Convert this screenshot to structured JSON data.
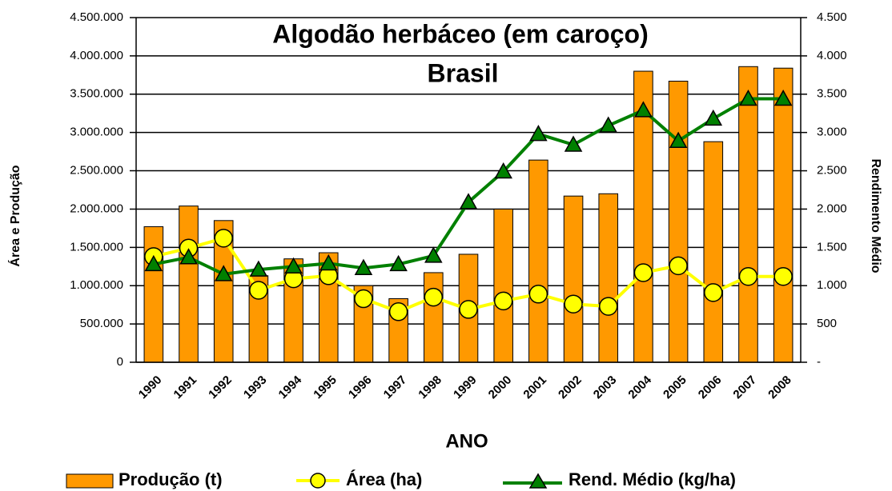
{
  "chart_data": {
    "type": "bar",
    "title": "Algodão herbáceo (em caroço)",
    "subtitle": "Brasil",
    "x_label": "ANO",
    "y_label": "Área e Produção",
    "y2_label": "Rendimento Médio",
    "categories": [
      "1990",
      "1991",
      "1992",
      "1993",
      "1994",
      "1995",
      "1996",
      "1997",
      "1998",
      "1999",
      "2000",
      "2001",
      "2002",
      "2003",
      "2004",
      "2005",
      "2006",
      "2007",
      "2008"
    ],
    "series": [
      {
        "name": "Produção (t)",
        "type": "bar",
        "color": "#ff9900",
        "values": [
          1770000,
          2040000,
          1850000,
          1130000,
          1350000,
          1430000,
          1000000,
          830000,
          1170000,
          1410000,
          2000000,
          2640000,
          2170000,
          2200000,
          3800000,
          3670000,
          2880000,
          3860000,
          3840000
        ]
      },
      {
        "name": "Área (ha)",
        "type": "line",
        "marker": "circle",
        "color": "#ffff00",
        "values": [
          1380000,
          1490000,
          1620000,
          940000,
          1090000,
          1130000,
          830000,
          660000,
          850000,
          690000,
          800000,
          890000,
          760000,
          730000,
          1170000,
          1260000,
          910000,
          1120000,
          1120000
        ]
      },
      {
        "name": "Rend. Médio (kg/ha)",
        "type": "line",
        "marker": "triangle",
        "color": "#008000",
        "axis": "y2",
        "values": [
          1280,
          1370,
          1150,
          1210,
          1250,
          1290,
          1230,
          1280,
          1390,
          2090,
          2490,
          2980,
          2840,
          3090,
          3290,
          2890,
          3180,
          3440,
          3440
        ]
      }
    ],
    "ylim": [
      0,
      4500000
    ],
    "yticks": [
      0,
      {
        "value": 500000,
        "label": "500.000"
      },
      {
        "value": 1000000,
        "label": "1.000.000"
      },
      {
        "value": 1500000,
        "label": "1.500.000"
      },
      {
        "value": 2000000,
        "label": "2.000.000"
      },
      {
        "value": 2500000,
        "label": "2.500.000"
      },
      {
        "value": 3000000,
        "label": "3.000.000"
      },
      {
        "value": 3500000,
        "label": "3.500.000"
      },
      {
        "value": 4000000,
        "label": "4.000.000"
      },
      {
        "value": 4500000,
        "label": "4.500.000"
      }
    ],
    "y2lim": [
      0,
      4500
    ],
    "y2ticks": [
      {
        "value": 0,
        "label": "-"
      },
      500,
      {
        "value": 1000,
        "label": "1.000"
      },
      {
        "value": 1500,
        "label": "1.500"
      },
      {
        "value": 2000,
        "label": "2.000"
      },
      {
        "value": 2500,
        "label": "2.500"
      },
      {
        "value": 3000,
        "label": "3.000"
      },
      {
        "value": 3500,
        "label": "3.500"
      },
      {
        "value": 4000,
        "label": "4.000"
      },
      {
        "value": 4500,
        "label": "4.500"
      }
    ],
    "grid": true,
    "legend": "bottom"
  }
}
